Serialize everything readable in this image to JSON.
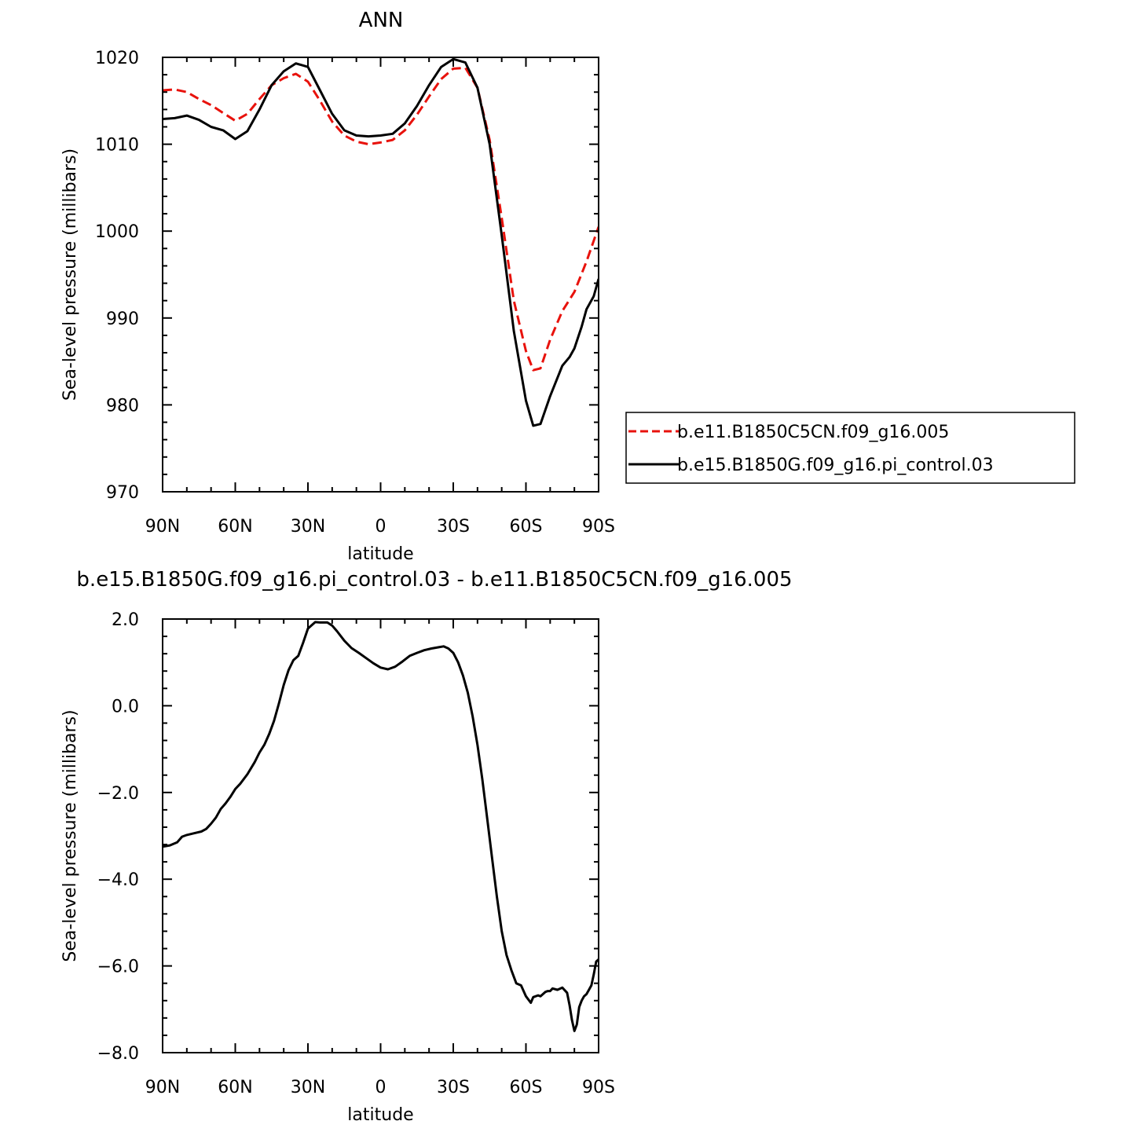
{
  "chart_data": [
    {
      "type": "line",
      "title": "ANN",
      "xlabel": "latitude",
      "ylabel": "Sea-level pressure (millibars)",
      "xlim": [
        90,
        -90
      ],
      "ylim": [
        970,
        1020
      ],
      "xticks": [
        90,
        60,
        30,
        0,
        -30,
        -60,
        -90
      ],
      "xtick_labels": [
        "90N",
        "60N",
        "30N",
        "0",
        "30S",
        "60S",
        "90S"
      ],
      "yticks": [
        970,
        980,
        990,
        1000,
        1010,
        1020
      ],
      "ytick_labels": [
        "970",
        "980",
        "990",
        "1000",
        "1010",
        "1020"
      ],
      "legend_position": "right",
      "series": [
        {
          "name": "b.e11.B1850C5CN.f09_g16.005",
          "color": "#e8120c",
          "dash": "dashed",
          "x": [
            90,
            85,
            80,
            75,
            70,
            65,
            60,
            55,
            50,
            45,
            40,
            35,
            30,
            25,
            20,
            15,
            10,
            5,
            0,
            -5,
            -10,
            -15,
            -20,
            -25,
            -30,
            -35,
            -40,
            -45,
            -50,
            -55,
            -60,
            -63,
            -66,
            -70,
            -75,
            -80,
            -85,
            -90
          ],
          "y": [
            1016.2,
            1016.3,
            1016.0,
            1015.2,
            1014.5,
            1013.6,
            1012.7,
            1013.5,
            1015.2,
            1016.8,
            1017.6,
            1018.1,
            1017.2,
            1015.0,
            1012.6,
            1011.0,
            1010.3,
            1010.0,
            1010.2,
            1010.5,
            1011.6,
            1013.4,
            1015.5,
            1017.5,
            1018.7,
            1018.8,
            1016.5,
            1010.5,
            1001.5,
            992.0,
            986.2,
            984.0,
            984.2,
            987.5,
            990.8,
            993.0,
            996.5,
            1000.5
          ]
        },
        {
          "name": "b.e15.B1850G.f09_g16.pi_control.03",
          "color": "#000000",
          "dash": "solid",
          "x": [
            90,
            85,
            80,
            75,
            70,
            65,
            60,
            55,
            50,
            45,
            40,
            35,
            30,
            25,
            20,
            15,
            10,
            5,
            0,
            -5,
            -10,
            -15,
            -20,
            -25,
            -30,
            -35,
            -40,
            -45,
            -50,
            -55,
            -60,
            -63,
            -66,
            -70,
            -75,
            -78,
            -80,
            -83,
            -85,
            -88,
            -90
          ],
          "y": [
            1012.9,
            1013.0,
            1013.3,
            1012.8,
            1012.0,
            1011.6,
            1010.6,
            1011.5,
            1014.0,
            1016.8,
            1018.4,
            1019.3,
            1018.9,
            1016.2,
            1013.5,
            1011.6,
            1011.0,
            1010.9,
            1011.0,
            1011.2,
            1012.4,
            1014.4,
            1016.8,
            1018.9,
            1019.8,
            1019.4,
            1016.5,
            1010.0,
            999.5,
            988.5,
            980.5,
            977.6,
            977.8,
            981.0,
            984.5,
            985.5,
            986.5,
            989.0,
            991.0,
            992.5,
            994.5
          ]
        }
      ]
    },
    {
      "type": "line",
      "title": "b.e15.B1850G.f09_g16.pi_control.03 - b.e11.B1850C5CN.f09_g16.005",
      "xlabel": "latitude",
      "ylabel": "Sea-level pressure (millibars)",
      "xlim": [
        90,
        -90
      ],
      "ylim": [
        -8.0,
        2.0
      ],
      "xticks": [
        90,
        60,
        30,
        0,
        -30,
        -60,
        -90
      ],
      "xtick_labels": [
        "90N",
        "60N",
        "30N",
        "0",
        "30S",
        "60S",
        "90S"
      ],
      "yticks": [
        -8.0,
        -6.0,
        -4.0,
        -2.0,
        0.0,
        2.0
      ],
      "ytick_labels": [
        "−8.0",
        "−6.0",
        "−4.0",
        "−2.0",
        "0.0",
        "2.0"
      ],
      "series": [
        {
          "color": "#000000",
          "dash": "solid",
          "x": [
            90,
            87,
            84,
            82,
            80,
            77,
            74,
            72,
            70,
            68,
            66,
            64,
            62,
            60,
            58,
            55,
            52,
            50,
            48,
            46,
            44,
            42,
            40,
            38,
            36,
            34,
            32,
            30,
            27,
            25,
            22,
            20,
            18,
            15,
            12,
            9,
            6,
            3,
            0,
            -3,
            -6,
            -9,
            -12,
            -15,
            -18,
            -21,
            -24,
            -26,
            -28,
            -30,
            -32,
            -34,
            -36,
            -38,
            -40,
            -42,
            -44,
            -46,
            -48,
            -50,
            -52,
            -54,
            -56,
            -58,
            -60,
            -62,
            -63,
            -65,
            -66,
            -68,
            -69,
            -70,
            -71,
            -73,
            -75,
            -77,
            -78,
            -79,
            -80,
            -81,
            -82,
            -83,
            -84,
            -85,
            -86,
            -87,
            -88,
            -89,
            -90
          ],
          "y": [
            -3.25,
            -3.22,
            -3.15,
            -3.02,
            -2.98,
            -2.94,
            -2.9,
            -2.84,
            -2.72,
            -2.58,
            -2.38,
            -2.25,
            -2.1,
            -1.92,
            -1.8,
            -1.58,
            -1.3,
            -1.08,
            -0.9,
            -0.65,
            -0.35,
            0.05,
            0.48,
            0.82,
            1.05,
            1.15,
            1.45,
            1.78,
            1.93,
            1.92,
            1.92,
            1.85,
            1.72,
            1.5,
            1.33,
            1.22,
            1.1,
            0.98,
            0.88,
            0.84,
            0.9,
            1.02,
            1.15,
            1.22,
            1.28,
            1.32,
            1.35,
            1.37,
            1.32,
            1.22,
            1.0,
            0.7,
            0.3,
            -0.25,
            -0.9,
            -1.7,
            -2.6,
            -3.5,
            -4.4,
            -5.2,
            -5.75,
            -6.1,
            -6.4,
            -6.45,
            -6.7,
            -6.85,
            -6.72,
            -6.68,
            -6.7,
            -6.6,
            -6.58,
            -6.58,
            -6.52,
            -6.55,
            -6.5,
            -6.62,
            -6.9,
            -7.25,
            -7.5,
            -7.35,
            -6.95,
            -6.8,
            -6.7,
            -6.65,
            -6.55,
            -6.45,
            -6.2,
            -5.9,
            -5.85
          ]
        }
      ]
    }
  ],
  "legend": {
    "items": [
      {
        "label": "b.e11.B1850C5CN.f09_g16.005",
        "color": "#e8120c",
        "dash": "dashed"
      },
      {
        "label": "b.e15.B1850G.f09_g16.pi_control.03",
        "color": "#000000",
        "dash": "solid"
      }
    ]
  }
}
